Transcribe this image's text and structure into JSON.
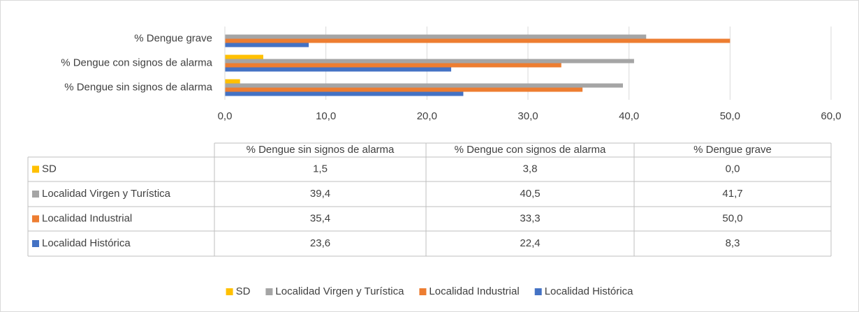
{
  "chart_data": {
    "type": "bar",
    "orientation": "horizontal",
    "categories": [
      "% Dengue sin signos de alarma",
      "% Dengue con signos de alarma",
      "% Dengue grave"
    ],
    "series": [
      {
        "name": "SD",
        "color": "#ffc000",
        "values": [
          1.5,
          3.8,
          0.0
        ],
        "value_labels": [
          "1,5",
          "3,8",
          "0,0"
        ]
      },
      {
        "name": "Localidad Virgen y Turística",
        "color": "#a5a5a5",
        "values": [
          39.4,
          40.5,
          41.7
        ],
        "value_labels": [
          "39,4",
          "40,5",
          "41,7"
        ]
      },
      {
        "name": "Localidad Industrial",
        "color": "#ed7d31",
        "values": [
          35.4,
          33.3,
          50.0
        ],
        "value_labels": [
          "35,4",
          "33,3",
          "50,0"
        ]
      },
      {
        "name": "Localidad Histórica",
        "color": "#4472c4",
        "values": [
          23.6,
          22.4,
          8.3
        ],
        "value_labels": [
          "23,6",
          "22,4",
          "8,3"
        ]
      }
    ],
    "xlim": [
      0,
      60
    ],
    "xticks": [
      {
        "value": 0,
        "label": "0,0"
      },
      {
        "value": 10,
        "label": "10,0"
      },
      {
        "value": 20,
        "label": "20,0"
      },
      {
        "value": 30,
        "label": "30,0"
      },
      {
        "value": 40,
        "label": "40,0"
      },
      {
        "value": 50,
        "label": "50,0"
      },
      {
        "value": 60,
        "label": "60,0"
      }
    ],
    "grid": true,
    "data_table": true,
    "legend": "bottom"
  }
}
